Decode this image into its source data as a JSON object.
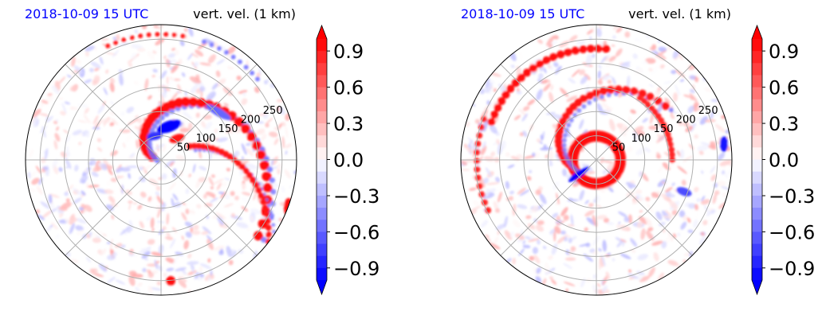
{
  "chart_data": [
    {
      "type": "heatmap",
      "projection": "polar",
      "title_left": "2018-10-09 15 UTC",
      "title_right": "vert. vel. (1 km)",
      "title_left_color": "#0000ff",
      "radial_tick_labels": [
        "50",
        "100",
        "150",
        "200",
        "250"
      ],
      "radial_ticks": [
        50,
        100,
        150,
        200,
        250
      ],
      "r_max": 280,
      "grid": true,
      "colormap": "bwr",
      "colorbar": {
        "min": -1.0,
        "max": 1.0,
        "levels": 20,
        "extend": "both",
        "ticks": [
          0.9,
          0.6,
          0.3,
          0.0,
          -0.3,
          -0.6,
          -0.9
        ],
        "tick_labels": [
          "0.9",
          "0.6",
          "0.3",
          "0.0",
          "−0.3",
          "−0.6",
          "−0.9"
        ]
      },
      "features": [
        {
          "kind": "updraft_band",
          "desc": "spiral band SE of center"
        },
        {
          "kind": "downdraft",
          "desc": "blue core just NW of center"
        }
      ]
    },
    {
      "type": "heatmap",
      "projection": "polar",
      "title_left": "2018-10-09 15 UTC",
      "title_right": "vert. vel. (1 km)",
      "title_left_color": "#0000ff",
      "radial_tick_labels": [
        "50",
        "100",
        "150",
        "200",
        "250"
      ],
      "radial_ticks": [
        50,
        100,
        150,
        200,
        250
      ],
      "r_max": 280,
      "grid": true,
      "colormap": "bwr",
      "colorbar": {
        "min": -1.0,
        "max": 1.0,
        "levels": 20,
        "extend": "both",
        "ticks": [
          0.9,
          0.6,
          0.3,
          0.0,
          -0.3,
          -0.6,
          -0.9
        ],
        "tick_labels": [
          "0.9",
          "0.6",
          "0.3",
          "0.0",
          "−0.3",
          "−0.6",
          "−0.9"
        ]
      },
      "features": [
        {
          "kind": "eyewall_ring",
          "desc": "red ring around center"
        },
        {
          "kind": "outer_band",
          "desc": "updraft band to the north"
        }
      ]
    }
  ]
}
